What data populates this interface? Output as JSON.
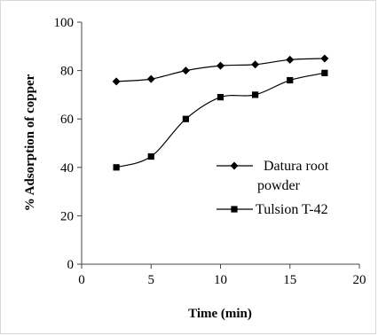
{
  "chart_data": {
    "type": "line",
    "xlabel": "Time (min)",
    "ylabel": "% Adsorption of copper",
    "xlim": [
      0,
      20
    ],
    "ylim": [
      0,
      100
    ],
    "x_ticks": [
      "0",
      "5",
      "10",
      "15",
      "20"
    ],
    "y_ticks": [
      "0",
      "20",
      "40",
      "60",
      "80",
      "100"
    ],
    "grid": false,
    "legend_position": "right",
    "series": [
      {
        "name_lines": [
          "Datura root",
          "powder"
        ],
        "marker": "diamond",
        "color": "#000000",
        "x": [
          2.5,
          5,
          7.5,
          10,
          12.5,
          15,
          17.5
        ],
        "y": [
          75.5,
          76.5,
          80,
          82,
          82.5,
          84.5,
          85
        ]
      },
      {
        "name": "Tulsion T-42",
        "marker": "square",
        "color": "#000000",
        "x": [
          2.5,
          5,
          7.5,
          10,
          12.5,
          15,
          17.5
        ],
        "y": [
          40,
          44.5,
          60,
          69,
          70,
          76,
          79
        ]
      }
    ]
  }
}
